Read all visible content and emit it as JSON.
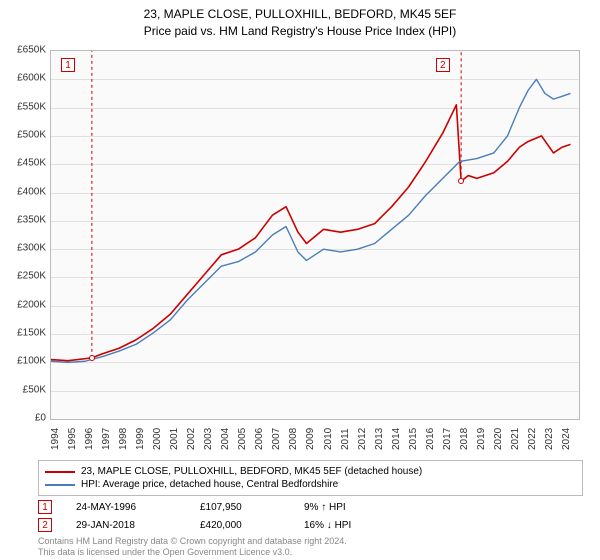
{
  "title_line1": "23, MAPLE CLOSE, PULLOXHILL, BEDFORD, MK45 5EF",
  "title_line2": "Price paid vs. HM Land Registry's House Price Index (HPI)",
  "chart": {
    "type": "line",
    "background_color": "#fafafa",
    "grid_color": "#e0e0e0",
    "border_color": "#bbbbbb",
    "ylim": [
      0,
      650000
    ],
    "ytick_step": 50000,
    "ytick_prefix": "£",
    "ytick_suffix": "K",
    "xlim": [
      1994,
      2025
    ],
    "xticks": [
      1994,
      1995,
      1996,
      1997,
      1998,
      1999,
      2000,
      2001,
      2002,
      2003,
      2004,
      2005,
      2006,
      2007,
      2008,
      2009,
      2010,
      2011,
      2012,
      2013,
      2014,
      2015,
      2016,
      2017,
      2018,
      2019,
      2020,
      2021,
      2022,
      2023,
      2024
    ],
    "series": [
      {
        "name": "property",
        "label": "23, MAPLE CLOSE, PULLOXHILL, BEDFORD, MK45 5EF (detached house)",
        "color": "#cc0000",
        "line_width": 1.6,
        "points": [
          [
            1994.0,
            105000
          ],
          [
            1995.0,
            103000
          ],
          [
            1996.4,
            107950
          ],
          [
            1997.0,
            115000
          ],
          [
            1998.0,
            125000
          ],
          [
            1999.0,
            140000
          ],
          [
            2000.0,
            160000
          ],
          [
            2001.0,
            185000
          ],
          [
            2002.0,
            220000
          ],
          [
            2003.0,
            255000
          ],
          [
            2004.0,
            290000
          ],
          [
            2005.0,
            300000
          ],
          [
            2006.0,
            320000
          ],
          [
            2007.0,
            360000
          ],
          [
            2007.8,
            375000
          ],
          [
            2008.5,
            330000
          ],
          [
            2009.0,
            310000
          ],
          [
            2010.0,
            335000
          ],
          [
            2011.0,
            330000
          ],
          [
            2012.0,
            335000
          ],
          [
            2013.0,
            345000
          ],
          [
            2014.0,
            375000
          ],
          [
            2015.0,
            410000
          ],
          [
            2016.0,
            455000
          ],
          [
            2017.0,
            505000
          ],
          [
            2017.8,
            555000
          ],
          [
            2018.08,
            420000
          ],
          [
            2018.5,
            430000
          ],
          [
            2019.0,
            425000
          ],
          [
            2020.0,
            435000
          ],
          [
            2020.8,
            455000
          ],
          [
            2021.5,
            480000
          ],
          [
            2022.0,
            490000
          ],
          [
            2022.8,
            500000
          ],
          [
            2023.5,
            470000
          ],
          [
            2024.0,
            480000
          ],
          [
            2024.5,
            485000
          ]
        ]
      },
      {
        "name": "hpi",
        "label": "HPI: Average price, detached house, Central Bedfordshire",
        "color": "#4a7ebb",
        "line_width": 1.4,
        "points": [
          [
            1994.0,
            102000
          ],
          [
            1995.0,
            100000
          ],
          [
            1996.0,
            102000
          ],
          [
            1997.0,
            110000
          ],
          [
            1998.0,
            120000
          ],
          [
            1999.0,
            132000
          ],
          [
            2000.0,
            152000
          ],
          [
            2001.0,
            175000
          ],
          [
            2002.0,
            210000
          ],
          [
            2003.0,
            240000
          ],
          [
            2004.0,
            270000
          ],
          [
            2005.0,
            278000
          ],
          [
            2006.0,
            295000
          ],
          [
            2007.0,
            325000
          ],
          [
            2007.8,
            340000
          ],
          [
            2008.5,
            295000
          ],
          [
            2009.0,
            280000
          ],
          [
            2010.0,
            300000
          ],
          [
            2011.0,
            295000
          ],
          [
            2012.0,
            300000
          ],
          [
            2013.0,
            310000
          ],
          [
            2014.0,
            335000
          ],
          [
            2015.0,
            360000
          ],
          [
            2016.0,
            395000
          ],
          [
            2017.0,
            425000
          ],
          [
            2018.0,
            455000
          ],
          [
            2019.0,
            460000
          ],
          [
            2020.0,
            470000
          ],
          [
            2020.8,
            500000
          ],
          [
            2021.5,
            550000
          ],
          [
            2022.0,
            580000
          ],
          [
            2022.5,
            600000
          ],
          [
            2023.0,
            575000
          ],
          [
            2023.5,
            565000
          ],
          [
            2024.0,
            570000
          ],
          [
            2024.5,
            575000
          ]
        ]
      }
    ],
    "markers": [
      {
        "id": "1",
        "x": 1996.4,
        "y": 107950,
        "box_x": 1995.0,
        "box_y": 625000,
        "color": "#cc0000"
      },
      {
        "id": "2",
        "x": 2018.08,
        "y": 420000,
        "box_x": 2017.0,
        "box_y": 625000,
        "color": "#cc0000"
      }
    ],
    "marker_line_color": "#cc0000",
    "marker_line_dash": "3,3"
  },
  "legend": {
    "items": [
      {
        "color": "#cc0000",
        "label": "23, MAPLE CLOSE, PULLOXHILL, BEDFORD, MK45 5EF (detached house)"
      },
      {
        "color": "#4a7ebb",
        "label": "HPI: Average price, detached house, Central Bedfordshire"
      }
    ]
  },
  "transactions": [
    {
      "id": "1",
      "date": "24-MAY-1996",
      "price": "£107,950",
      "delta": "9% ↑ HPI"
    },
    {
      "id": "2",
      "date": "29-JAN-2018",
      "price": "£420,000",
      "delta": "16% ↓ HPI"
    }
  ],
  "footer_line1": "Contains HM Land Registry data © Crown copyright and database right 2024.",
  "footer_line2": "This data is licensed under the Open Government Licence v3.0."
}
